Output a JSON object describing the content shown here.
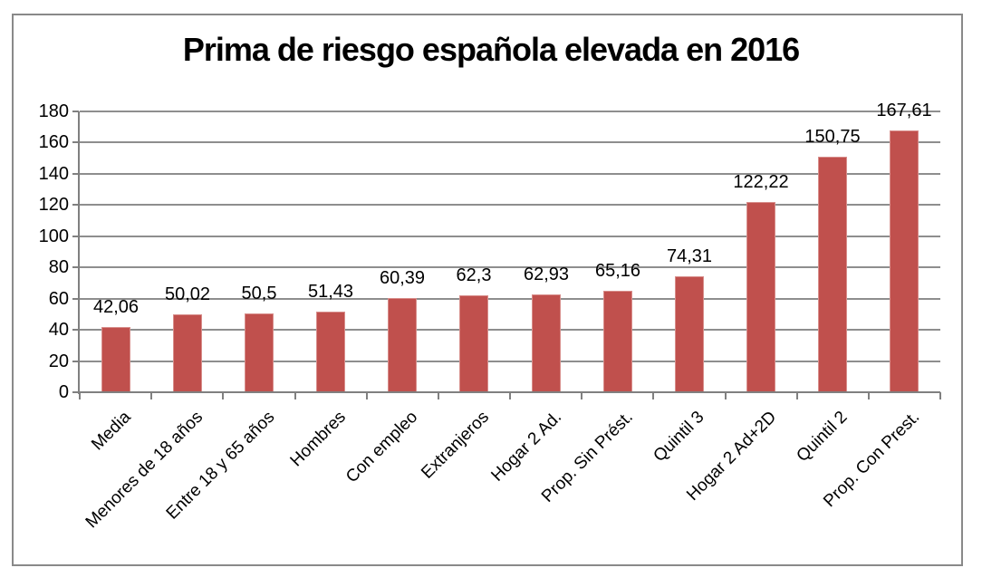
{
  "chart_data": {
    "type": "bar",
    "title": "Prima de riesgo española elevada en 2016",
    "categories": [
      "Media",
      "Menores de 18 años",
      "Entre 18 y 65 años",
      "Hombres",
      "Con empleo",
      "Extranjeros",
      "Hogar 2 Ad.",
      "Prop. Sin Prést.",
      "Quintil 3",
      "Hogar 2 Ad+2D",
      "Quintil 2",
      "Prop. Con Prest."
    ],
    "values": [
      42.06,
      50.02,
      50.5,
      51.43,
      60.39,
      62.3,
      62.93,
      65.16,
      74.31,
      122.22,
      150.75,
      167.61
    ],
    "value_labels": [
      "42,06",
      "50,02",
      "50,5",
      "51,43",
      "60,39",
      "62,3",
      "62,93",
      "65,16",
      "74,31",
      "122,22",
      "150,75",
      "167,61"
    ],
    "xlabel": "",
    "ylabel": "",
    "ylim": [
      0,
      180
    ],
    "yticks": [
      0,
      20,
      40,
      60,
      80,
      100,
      120,
      140,
      160,
      180
    ],
    "ytick_labels": [
      "0",
      "20",
      "40",
      "60",
      "80",
      "100",
      "120",
      "140",
      "160",
      "180"
    ],
    "grid": "horizontal",
    "legend": "none",
    "colors": {
      "bar_fill": "#C0504D",
      "bar_border": "#D88E8B",
      "gridline": "#8E8E8E",
      "axis": "#808080",
      "frame_border": "#898989",
      "text": "#000000",
      "background": "#FFFFFF"
    }
  }
}
